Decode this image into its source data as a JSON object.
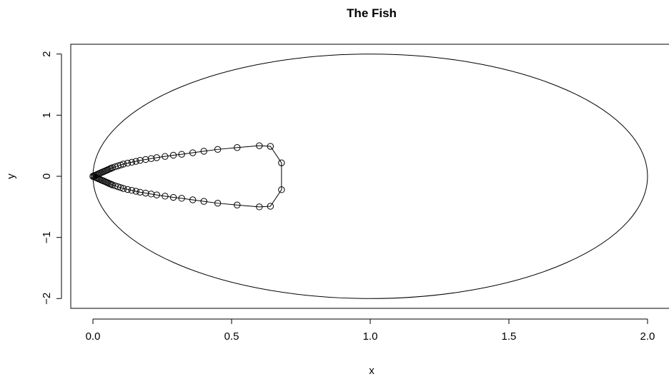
{
  "chart_data": {
    "type": "line",
    "title": "The Fish",
    "xlabel": "x",
    "ylabel": "y",
    "xlim": [
      -0.08,
      2.08
    ],
    "ylim": [
      -2.16,
      2.16
    ],
    "x_ticks": [
      0.0,
      0.5,
      1.0,
      1.5,
      2.0
    ],
    "x_tick_labels": [
      "0.0",
      "0.5",
      "1.0",
      "1.5",
      "2.0"
    ],
    "y_ticks": [
      -2,
      -1,
      0,
      1,
      2
    ],
    "y_tick_labels": [
      "−2",
      "−1",
      "0",
      "1",
      "2"
    ],
    "grid": false,
    "series": [
      {
        "style": "curve",
        "equation": "(x-1)^2 + (y/2)^2 = 1",
        "center": [
          1,
          0
        ],
        "semi_axes": [
          1,
          2
        ]
      },
      {
        "style": "lines+open-circles",
        "points": [
          [
            0.0,
            0.0
          ],
          [
            0.005,
            0.01
          ],
          [
            0.01,
            0.02
          ],
          [
            0.015,
            0.03
          ],
          [
            0.02,
            0.04
          ],
          [
            0.025,
            0.05
          ],
          [
            0.03,
            0.06
          ],
          [
            0.035,
            0.07
          ],
          [
            0.04,
            0.08
          ],
          [
            0.045,
            0.09
          ],
          [
            0.05,
            0.1
          ],
          [
            0.055,
            0.11
          ],
          [
            0.06,
            0.12
          ],
          [
            0.065,
            0.13
          ],
          [
            0.07,
            0.14
          ],
          [
            0.08,
            0.155
          ],
          [
            0.09,
            0.17
          ],
          [
            0.1,
            0.185
          ],
          [
            0.11,
            0.2
          ],
          [
            0.125,
            0.215
          ],
          [
            0.14,
            0.23
          ],
          [
            0.155,
            0.245
          ],
          [
            0.17,
            0.26
          ],
          [
            0.19,
            0.275
          ],
          [
            0.21,
            0.29
          ],
          [
            0.23,
            0.305
          ],
          [
            0.26,
            0.325
          ],
          [
            0.29,
            0.345
          ],
          [
            0.32,
            0.36
          ],
          [
            0.36,
            0.385
          ],
          [
            0.4,
            0.41
          ],
          [
            0.45,
            0.44
          ],
          [
            0.52,
            0.47
          ],
          [
            0.6,
            0.5
          ],
          [
            0.64,
            0.49
          ],
          [
            0.68,
            0.22
          ],
          [
            0.68,
            -0.22
          ],
          [
            0.64,
            -0.49
          ],
          [
            0.6,
            -0.5
          ],
          [
            0.52,
            -0.47
          ],
          [
            0.45,
            -0.44
          ],
          [
            0.4,
            -0.41
          ],
          [
            0.36,
            -0.385
          ],
          [
            0.32,
            -0.36
          ],
          [
            0.29,
            -0.345
          ],
          [
            0.26,
            -0.325
          ],
          [
            0.23,
            -0.305
          ],
          [
            0.21,
            -0.29
          ],
          [
            0.19,
            -0.275
          ],
          [
            0.17,
            -0.26
          ],
          [
            0.155,
            -0.245
          ],
          [
            0.14,
            -0.23
          ],
          [
            0.125,
            -0.215
          ],
          [
            0.11,
            -0.2
          ],
          [
            0.1,
            -0.185
          ],
          [
            0.09,
            -0.17
          ],
          [
            0.08,
            -0.155
          ],
          [
            0.07,
            -0.14
          ],
          [
            0.065,
            -0.13
          ],
          [
            0.06,
            -0.12
          ],
          [
            0.055,
            -0.11
          ],
          [
            0.05,
            -0.1
          ],
          [
            0.045,
            -0.09
          ],
          [
            0.04,
            -0.08
          ],
          [
            0.035,
            -0.07
          ],
          [
            0.03,
            -0.06
          ],
          [
            0.025,
            -0.05
          ],
          [
            0.02,
            -0.04
          ],
          [
            0.015,
            -0.03
          ],
          [
            0.01,
            -0.02
          ],
          [
            0.005,
            -0.01
          ],
          [
            0.0,
            0.0
          ]
        ]
      }
    ],
    "colors": {
      "line": "#000000",
      "background": "#ffffff"
    }
  }
}
